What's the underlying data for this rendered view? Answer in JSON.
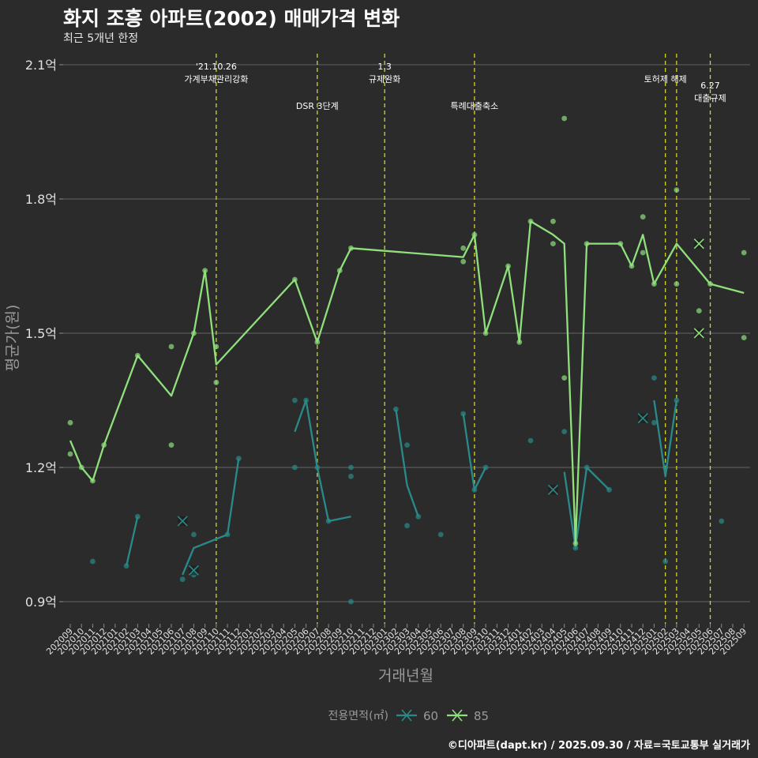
{
  "title": "화지 조흥 아파트(2002) 매매가격 변화",
  "subtitle": "최근 5개년 한정",
  "caption": "©디아파트(dapt.kr) / 2025.09.30 / 자료=국토교통부 실거래가",
  "chart_data": {
    "type": "line",
    "xlabel": "거래년월",
    "ylabel": "평균가(원)",
    "y_unit": "억",
    "ylim": [
      0.78,
      2.13
    ],
    "yticks": [
      0.9,
      1.2,
      1.5,
      1.8,
      2.1
    ],
    "ytick_labels": [
      "0.9억",
      "1.2억",
      "1.5억",
      "1.8억",
      "2.1억"
    ],
    "categories": [
      "202009",
      "202010",
      "202011",
      "202012",
      "202101",
      "202102",
      "202103",
      "202104",
      "202105",
      "202106",
      "202107",
      "202108",
      "202109",
      "202110",
      "202111",
      "202112",
      "202201",
      "202202",
      "202203",
      "202204",
      "202205",
      "202206",
      "202207",
      "202208",
      "202209",
      "202210",
      "202211",
      "202212",
      "202301",
      "202302",
      "202303",
      "202304",
      "202305",
      "202306",
      "202307",
      "202308",
      "202309",
      "202310",
      "202311",
      "202312",
      "202401",
      "202402",
      "202403",
      "202404",
      "202405",
      "202406",
      "202407",
      "202408",
      "202409",
      "202410",
      "202411",
      "202412",
      "202501",
      "202502",
      "202503",
      "202504",
      "202505",
      "202506",
      "202507",
      "202508",
      "202509"
    ],
    "legend": {
      "title": "전용면적(㎡)",
      "position": "bottom",
      "entries": [
        "60",
        "85"
      ]
    },
    "colors": {
      "60": "#2a8a8a",
      "85": "#8fe07c"
    },
    "events": [
      {
        "x": 13,
        "label": "'21.10.26\n가계부채관리강화",
        "row": 0
      },
      {
        "x": 22,
        "label": "DSR 3단계",
        "row": 1
      },
      {
        "x": 28,
        "label": "1.3\n규제완화",
        "row": 0
      },
      {
        "x": 36,
        "label": "특례대출축소",
        "row": 1
      },
      {
        "x": 53,
        "label": "토허제 해제",
        "row": 0
      },
      {
        "x": 54,
        "label": "",
        "row": 0
      },
      {
        "x": 57,
        "label": "6.27\n대출규제",
        "row": 1
      }
    ],
    "series": [
      {
        "name": "60",
        "segments": [
          [
            [
              5,
              0.98
            ],
            [
              6,
              1.09
            ]
          ],
          [
            [
              10,
              0.96
            ],
            [
              11,
              1.02
            ],
            [
              14,
              1.05
            ],
            [
              15,
              1.22
            ]
          ],
          [
            [
              20,
              1.28
            ],
            [
              21,
              1.35
            ],
            [
              22,
              1.2
            ],
            [
              23,
              1.08
            ],
            [
              25,
              1.09
            ]
          ],
          [
            [
              29,
              1.33
            ],
            [
              30,
              1.16
            ],
            [
              31,
              1.09
            ]
          ],
          [
            [
              35,
              1.32
            ],
            [
              36,
              1.15
            ],
            [
              37,
              1.2
            ]
          ],
          [
            [
              44,
              1.19
            ],
            [
              45,
              1.02
            ],
            [
              46,
              1.2
            ],
            [
              48,
              1.15
            ]
          ],
          [
            [
              52,
              1.35
            ],
            [
              53,
              1.18
            ],
            [
              54,
              1.35
            ]
          ]
        ],
        "points": [
          [
            2,
            0.99
          ],
          [
            5,
            0.98
          ],
          [
            6,
            1.09
          ],
          [
            10,
            0.95
          ],
          [
            11,
            1.05
          ],
          [
            11,
            0.96
          ],
          [
            14,
            1.05
          ],
          [
            15,
            1.22
          ],
          [
            20,
            1.35
          ],
          [
            20,
            1.2
          ],
          [
            21,
            1.35
          ],
          [
            22,
            1.2
          ],
          [
            23,
            1.08
          ],
          [
            25,
            1.2
          ],
          [
            25,
            1.18
          ],
          [
            25,
            0.9
          ],
          [
            29,
            1.33
          ],
          [
            30,
            1.25
          ],
          [
            30,
            1.07
          ],
          [
            31,
            1.09
          ],
          [
            33,
            1.05
          ],
          [
            35,
            1.32
          ],
          [
            36,
            1.15
          ],
          [
            37,
            1.2
          ],
          [
            41,
            1.26
          ],
          [
            44,
            1.28
          ],
          [
            45,
            1.02
          ],
          [
            46,
            1.2
          ],
          [
            48,
            1.15
          ],
          [
            52,
            1.4
          ],
          [
            52,
            1.3
          ],
          [
            53,
            1.2
          ],
          [
            53,
            0.99
          ],
          [
            54,
            1.35
          ],
          [
            58,
            1.08
          ]
        ],
        "crosses": [
          [
            10,
            1.08
          ],
          [
            11,
            0.97
          ],
          [
            43,
            1.15
          ],
          [
            51,
            1.31
          ]
        ]
      },
      {
        "name": "85",
        "segments": [
          [
            [
              0,
              1.26
            ],
            [
              1,
              1.2
            ],
            [
              2,
              1.17
            ],
            [
              3,
              1.25
            ],
            [
              6,
              1.45
            ],
            [
              9,
              1.36
            ],
            [
              11,
              1.5
            ],
            [
              12,
              1.64
            ],
            [
              13,
              1.43
            ],
            [
              20,
              1.62
            ],
            [
              22,
              1.48
            ],
            [
              24,
              1.64
            ],
            [
              25,
              1.69
            ],
            [
              35,
              1.67
            ],
            [
              36,
              1.72
            ],
            [
              37,
              1.5
            ],
            [
              39,
              1.65
            ],
            [
              40,
              1.48
            ],
            [
              41,
              1.75
            ],
            [
              43,
              1.72
            ],
            [
              44,
              1.7
            ],
            [
              45,
              1.03
            ],
            [
              46,
              1.7
            ],
            [
              49,
              1.7
            ],
            [
              50,
              1.65
            ],
            [
              51,
              1.72
            ],
            [
              52,
              1.61
            ],
            [
              54,
              1.7
            ],
            [
              56,
              1.64
            ],
            [
              57,
              1.61
            ],
            [
              60,
              1.59
            ]
          ]
        ],
        "points": [
          [
            0,
            1.3
          ],
          [
            0,
            1.23
          ],
          [
            1,
            1.2
          ],
          [
            2,
            1.17
          ],
          [
            3,
            1.25
          ],
          [
            6,
            1.45
          ],
          [
            9,
            1.47
          ],
          [
            9,
            1.25
          ],
          [
            11,
            1.5
          ],
          [
            12,
            1.64
          ],
          [
            13,
            1.47
          ],
          [
            13,
            1.39
          ],
          [
            20,
            1.62
          ],
          [
            22,
            1.48
          ],
          [
            24,
            1.64
          ],
          [
            25,
            1.69
          ],
          [
            35,
            1.69
          ],
          [
            35,
            1.66
          ],
          [
            36,
            1.72
          ],
          [
            37,
            1.5
          ],
          [
            39,
            1.65
          ],
          [
            40,
            1.48
          ],
          [
            41,
            1.75
          ],
          [
            43,
            1.75
          ],
          [
            43,
            1.7
          ],
          [
            44,
            1.4
          ],
          [
            44,
            1.98
          ],
          [
            45,
            1.03
          ],
          [
            46,
            1.7
          ],
          [
            49,
            1.7
          ],
          [
            50,
            1.65
          ],
          [
            51,
            1.76
          ],
          [
            51,
            1.68
          ],
          [
            52,
            1.61
          ],
          [
            54,
            1.82
          ],
          [
            54,
            1.61
          ],
          [
            56,
            1.55
          ],
          [
            57,
            1.61
          ],
          [
            60,
            1.68
          ],
          [
            60,
            1.49
          ]
        ],
        "crosses": [
          [
            56,
            1.7
          ],
          [
            56,
            1.5
          ]
        ]
      }
    ]
  }
}
